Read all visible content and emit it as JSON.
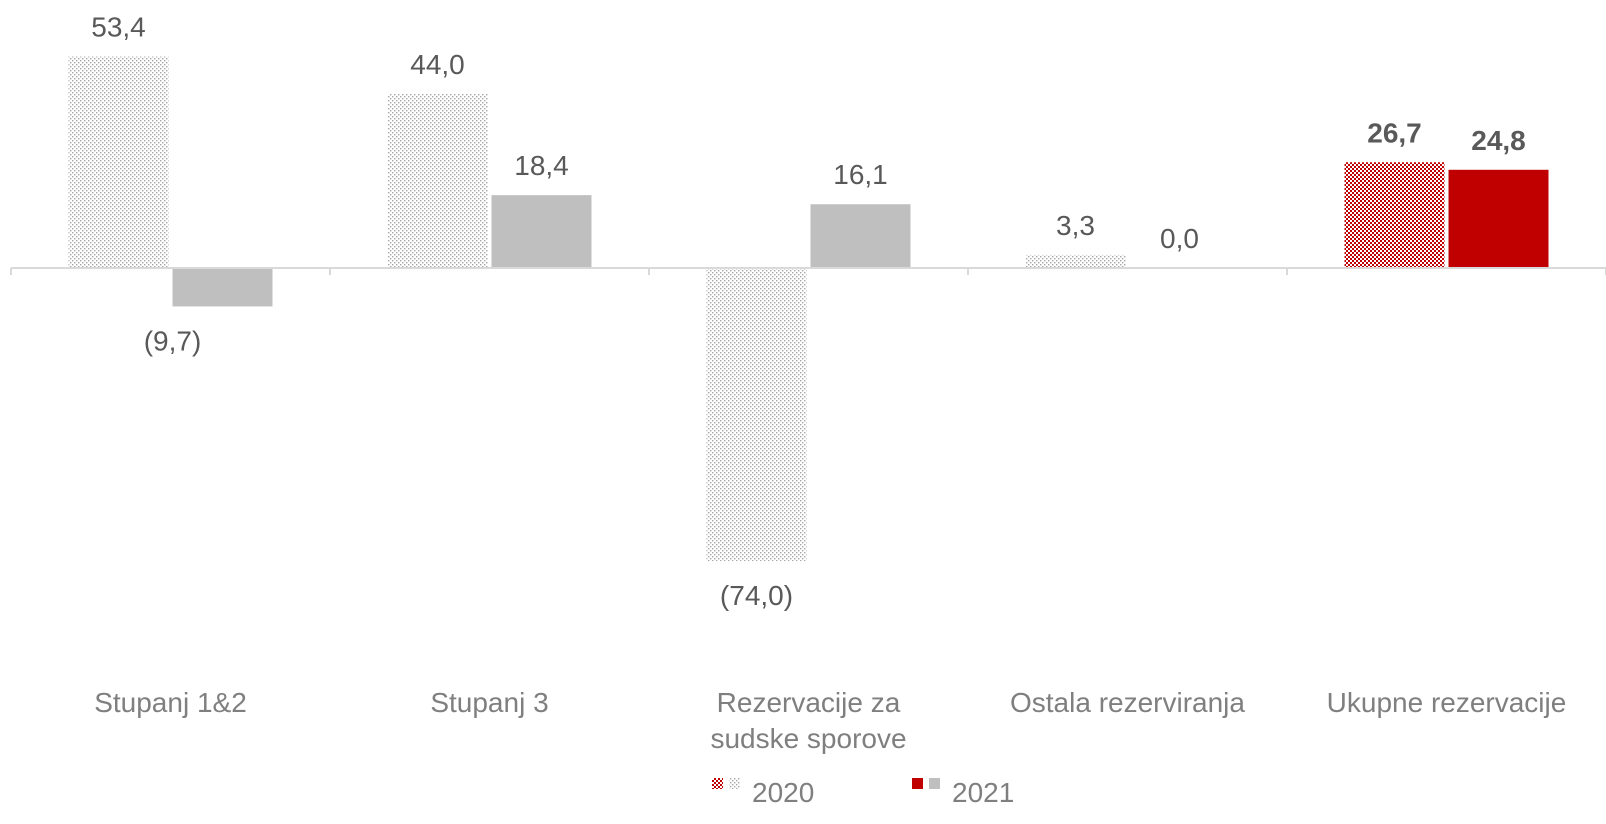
{
  "chart_data": {
    "type": "bar",
    "categories": [
      [
        "Stupanj 1&2"
      ],
      [
        "Stupanj 3"
      ],
      [
        "Rezervacije za",
        "sudske sporove"
      ],
      [
        "Ostala rezerviranja"
      ],
      [
        "Ukupne rezervacije"
      ]
    ],
    "series": [
      {
        "name": "2020",
        "values": [
          53.4,
          44.0,
          -74.0,
          3.3,
          26.7
        ],
        "labels": [
          "53,4",
          "44,0",
          "(74,0)",
          "3,3",
          "26,7"
        ]
      },
      {
        "name": "2021",
        "values": [
          -9.7,
          18.4,
          16.1,
          0.0,
          24.8
        ],
        "labels": [
          "(9,7)",
          "18,4",
          "16,1",
          "0,0",
          "24,8"
        ]
      }
    ],
    "highlight_category_index": 4,
    "colors": {
      "series_2021": "#bfbfbf",
      "highlight": "#c00000",
      "pattern_dot_grey": "#a6a6a6",
      "pattern_dot_red": "#c00000",
      "axis": "#d9d9d9",
      "label": "#595959",
      "category": "#7f7f7f"
    },
    "ylim": [
      -74.0,
      53.4
    ],
    "grid": false,
    "legend": "bottom-center"
  }
}
